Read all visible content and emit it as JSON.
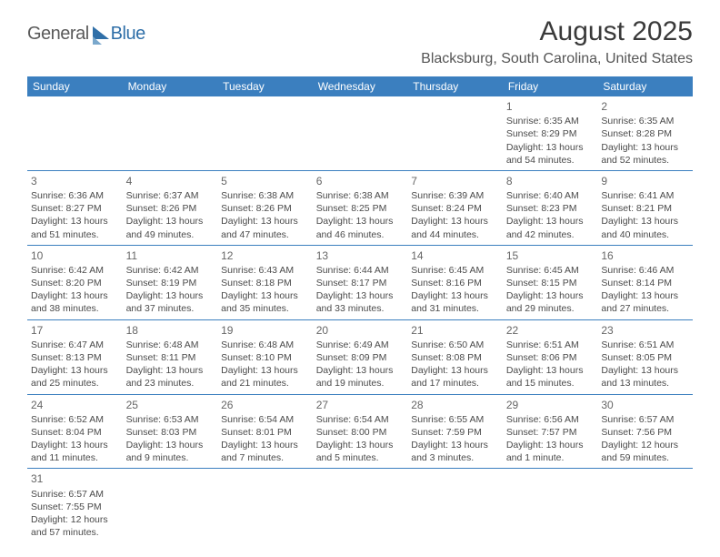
{
  "brand": {
    "name_a": "General",
    "name_b": "Blue"
  },
  "title": "August 2025",
  "location": "Blacksburg, South Carolina, United States",
  "colors": {
    "header_bg": "#3b7fbf",
    "header_text": "#ffffff",
    "rule": "#3b7fbf",
    "body_text": "#4a4a4a",
    "title_text": "#3a3a3a",
    "brand_gray": "#5a5a5a",
    "brand_blue": "#2f6fa8"
  },
  "weekdays": [
    "Sunday",
    "Monday",
    "Tuesday",
    "Wednesday",
    "Thursday",
    "Friday",
    "Saturday"
  ],
  "days": {
    "1": {
      "sunrise": "Sunrise: 6:35 AM",
      "sunset": "Sunset: 8:29 PM",
      "daylight": "Daylight: 13 hours and 54 minutes."
    },
    "2": {
      "sunrise": "Sunrise: 6:35 AM",
      "sunset": "Sunset: 8:28 PM",
      "daylight": "Daylight: 13 hours and 52 minutes."
    },
    "3": {
      "sunrise": "Sunrise: 6:36 AM",
      "sunset": "Sunset: 8:27 PM",
      "daylight": "Daylight: 13 hours and 51 minutes."
    },
    "4": {
      "sunrise": "Sunrise: 6:37 AM",
      "sunset": "Sunset: 8:26 PM",
      "daylight": "Daylight: 13 hours and 49 minutes."
    },
    "5": {
      "sunrise": "Sunrise: 6:38 AM",
      "sunset": "Sunset: 8:26 PM",
      "daylight": "Daylight: 13 hours and 47 minutes."
    },
    "6": {
      "sunrise": "Sunrise: 6:38 AM",
      "sunset": "Sunset: 8:25 PM",
      "daylight": "Daylight: 13 hours and 46 minutes."
    },
    "7": {
      "sunrise": "Sunrise: 6:39 AM",
      "sunset": "Sunset: 8:24 PM",
      "daylight": "Daylight: 13 hours and 44 minutes."
    },
    "8": {
      "sunrise": "Sunrise: 6:40 AM",
      "sunset": "Sunset: 8:23 PM",
      "daylight": "Daylight: 13 hours and 42 minutes."
    },
    "9": {
      "sunrise": "Sunrise: 6:41 AM",
      "sunset": "Sunset: 8:21 PM",
      "daylight": "Daylight: 13 hours and 40 minutes."
    },
    "10": {
      "sunrise": "Sunrise: 6:42 AM",
      "sunset": "Sunset: 8:20 PM",
      "daylight": "Daylight: 13 hours and 38 minutes."
    },
    "11": {
      "sunrise": "Sunrise: 6:42 AM",
      "sunset": "Sunset: 8:19 PM",
      "daylight": "Daylight: 13 hours and 37 minutes."
    },
    "12": {
      "sunrise": "Sunrise: 6:43 AM",
      "sunset": "Sunset: 8:18 PM",
      "daylight": "Daylight: 13 hours and 35 minutes."
    },
    "13": {
      "sunrise": "Sunrise: 6:44 AM",
      "sunset": "Sunset: 8:17 PM",
      "daylight": "Daylight: 13 hours and 33 minutes."
    },
    "14": {
      "sunrise": "Sunrise: 6:45 AM",
      "sunset": "Sunset: 8:16 PM",
      "daylight": "Daylight: 13 hours and 31 minutes."
    },
    "15": {
      "sunrise": "Sunrise: 6:45 AM",
      "sunset": "Sunset: 8:15 PM",
      "daylight": "Daylight: 13 hours and 29 minutes."
    },
    "16": {
      "sunrise": "Sunrise: 6:46 AM",
      "sunset": "Sunset: 8:14 PM",
      "daylight": "Daylight: 13 hours and 27 minutes."
    },
    "17": {
      "sunrise": "Sunrise: 6:47 AM",
      "sunset": "Sunset: 8:13 PM",
      "daylight": "Daylight: 13 hours and 25 minutes."
    },
    "18": {
      "sunrise": "Sunrise: 6:48 AM",
      "sunset": "Sunset: 8:11 PM",
      "daylight": "Daylight: 13 hours and 23 minutes."
    },
    "19": {
      "sunrise": "Sunrise: 6:48 AM",
      "sunset": "Sunset: 8:10 PM",
      "daylight": "Daylight: 13 hours and 21 minutes."
    },
    "20": {
      "sunrise": "Sunrise: 6:49 AM",
      "sunset": "Sunset: 8:09 PM",
      "daylight": "Daylight: 13 hours and 19 minutes."
    },
    "21": {
      "sunrise": "Sunrise: 6:50 AM",
      "sunset": "Sunset: 8:08 PM",
      "daylight": "Daylight: 13 hours and 17 minutes."
    },
    "22": {
      "sunrise": "Sunrise: 6:51 AM",
      "sunset": "Sunset: 8:06 PM",
      "daylight": "Daylight: 13 hours and 15 minutes."
    },
    "23": {
      "sunrise": "Sunrise: 6:51 AM",
      "sunset": "Sunset: 8:05 PM",
      "daylight": "Daylight: 13 hours and 13 minutes."
    },
    "24": {
      "sunrise": "Sunrise: 6:52 AM",
      "sunset": "Sunset: 8:04 PM",
      "daylight": "Daylight: 13 hours and 11 minutes."
    },
    "25": {
      "sunrise": "Sunrise: 6:53 AM",
      "sunset": "Sunset: 8:03 PM",
      "daylight": "Daylight: 13 hours and 9 minutes."
    },
    "26": {
      "sunrise": "Sunrise: 6:54 AM",
      "sunset": "Sunset: 8:01 PM",
      "daylight": "Daylight: 13 hours and 7 minutes."
    },
    "27": {
      "sunrise": "Sunrise: 6:54 AM",
      "sunset": "Sunset: 8:00 PM",
      "daylight": "Daylight: 13 hours and 5 minutes."
    },
    "28": {
      "sunrise": "Sunrise: 6:55 AM",
      "sunset": "Sunset: 7:59 PM",
      "daylight": "Daylight: 13 hours and 3 minutes."
    },
    "29": {
      "sunrise": "Sunrise: 6:56 AM",
      "sunset": "Sunset: 7:57 PM",
      "daylight": "Daylight: 13 hours and 1 minute."
    },
    "30": {
      "sunrise": "Sunrise: 6:57 AM",
      "sunset": "Sunset: 7:56 PM",
      "daylight": "Daylight: 12 hours and 59 minutes."
    },
    "31": {
      "sunrise": "Sunrise: 6:57 AM",
      "sunset": "Sunset: 7:55 PM",
      "daylight": "Daylight: 12 hours and 57 minutes."
    }
  },
  "layout": {
    "first_weekday_index": 5,
    "num_days": 31,
    "cols": 7
  }
}
